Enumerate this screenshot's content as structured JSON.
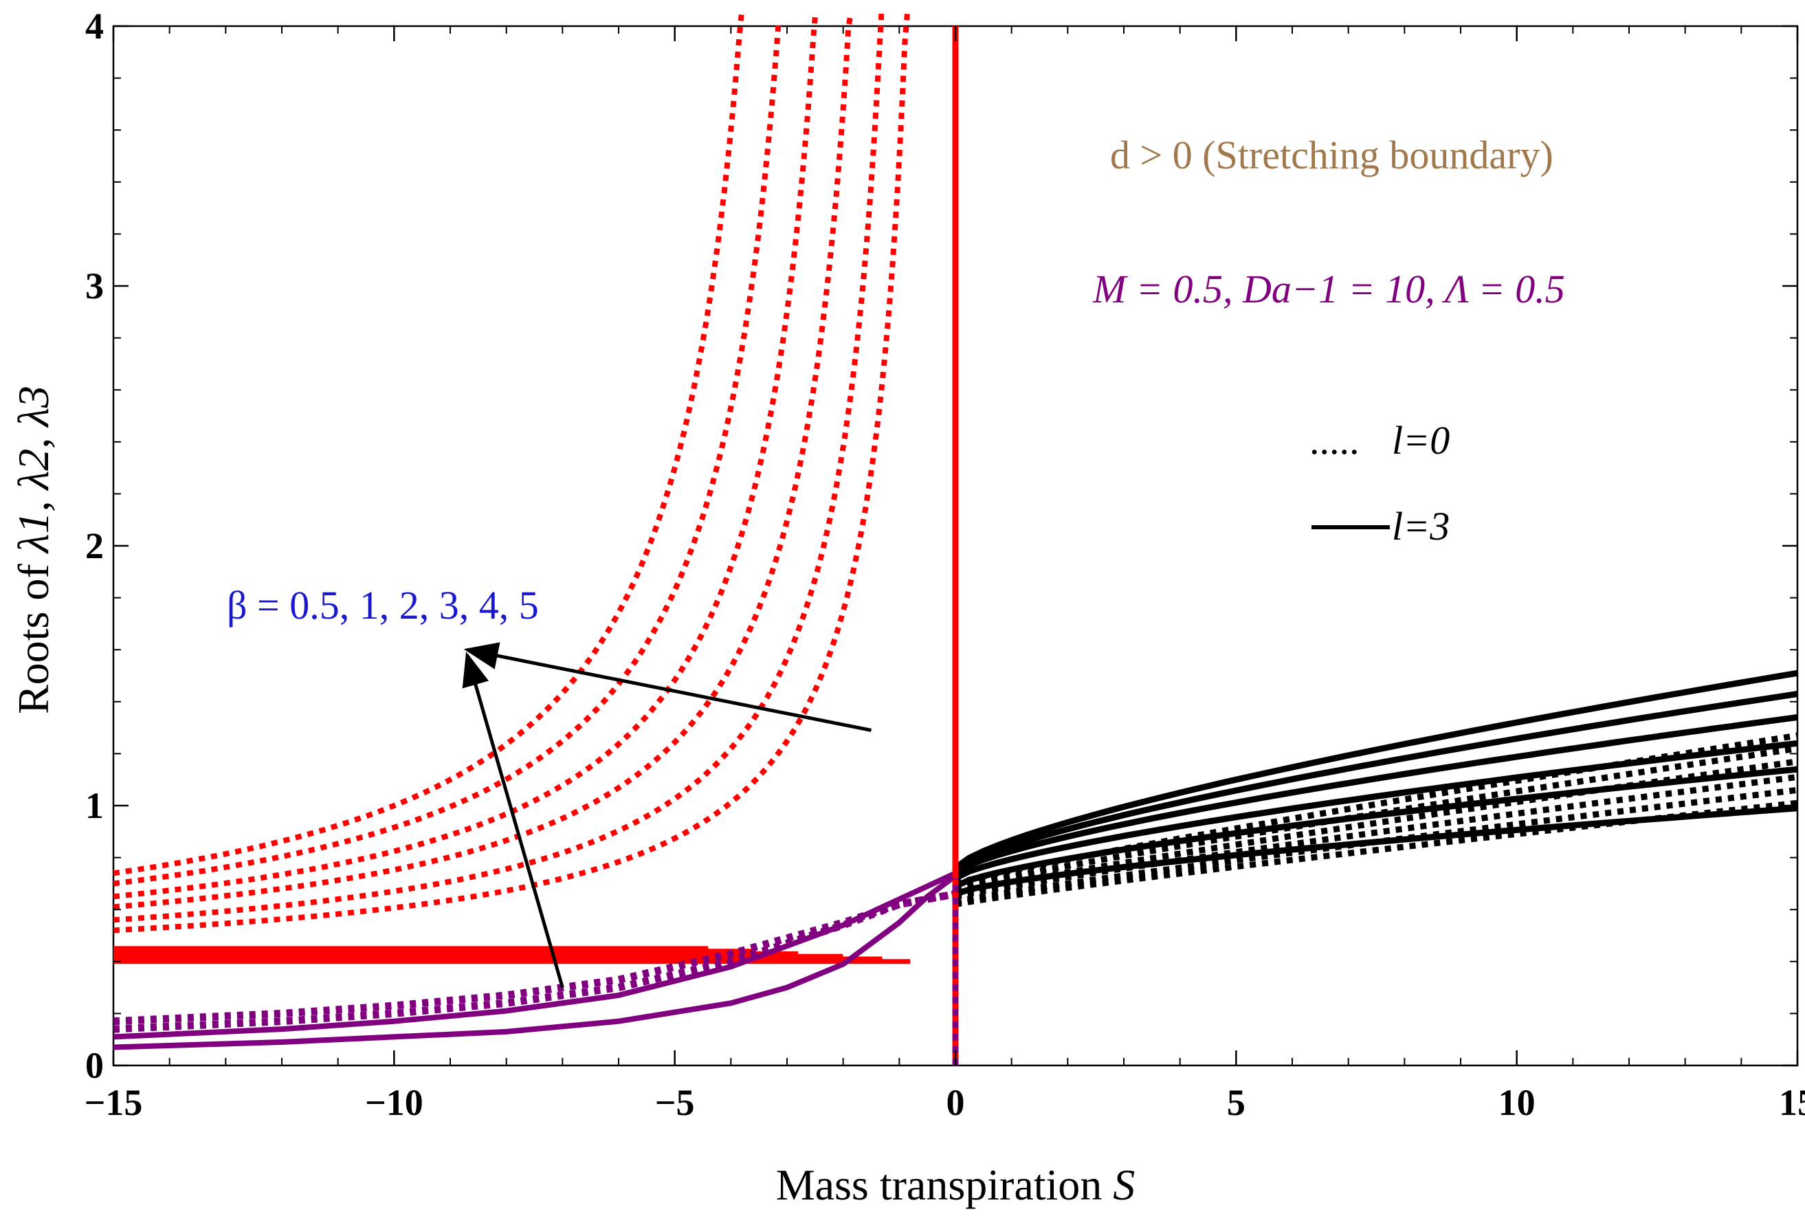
{
  "chart_data": {
    "type": "line",
    "xlabel": "Mass transpiration",
    "xlabel_var": "S",
    "ylabel_prefix": "Roots of ",
    "ylabel_math": "λ1, λ2, λ3",
    "xlim": [
      -15,
      15
    ],
    "ylim": [
      0,
      4
    ],
    "x_ticks": [
      -15,
      -10,
      -5,
      0,
      5,
      10,
      15
    ],
    "x_tick_labels": [
      "−15",
      "−10",
      "−5",
      "0",
      "5",
      "10",
      "15"
    ],
    "y_ticks": [
      0,
      1,
      2,
      3,
      4
    ],
    "y_tick_labels": [
      "0",
      "1",
      "2",
      "3",
      "4"
    ],
    "grid": false,
    "annotations": {
      "condition": "d > 0 (Stretching boundary)",
      "params": "M = 0.5, Da−1 = 10, Λ = 0.5",
      "beta": "β = 0.5, 1, 2, 3, 4, 5",
      "legend_dotted": "l=0",
      "legend_solid": "l=3",
      "legend_dotted_marker": ".....",
      "legend_solid_marker": "—"
    },
    "colors": {
      "red_branch": "#ff0000",
      "purple_branch": "#800080",
      "black_branch": "#000000",
      "condition_text": "#a0784c",
      "params_text": "#800080",
      "beta_text": "#1a1acc"
    },
    "beta": [
      0.5,
      1,
      2,
      3,
      4,
      5
    ],
    "red_branch": {
      "x_range": [
        -15,
        0
      ],
      "series": [
        {
          "beta": 0.5,
          "style": "solid",
          "asymptote": -0.8,
          "start_value": 0.4,
          "base": 0.4
        },
        {
          "beta": 1,
          "style": "solid",
          "asymptote": -1.3,
          "start_value": 0.41,
          "base": 0.41
        },
        {
          "beta": 2,
          "style": "solid",
          "asymptote": -2.0,
          "start_value": 0.42,
          "base": 0.42
        },
        {
          "beta": 3,
          "style": "solid",
          "asymptote": -2.8,
          "start_value": 0.43,
          "base": 0.43
        },
        {
          "beta": 4,
          "style": "solid",
          "asymptote": -3.6,
          "start_value": 0.44,
          "base": 0.44
        },
        {
          "beta": 5,
          "style": "solid",
          "asymptote": -4.4,
          "start_value": 0.45,
          "base": 0.45
        },
        {
          "beta": 0.5,
          "style": "dotted",
          "asymptote": -0.2,
          "start_value": 0.52
        },
        {
          "beta": 1,
          "style": "dotted",
          "asymptote": -0.5,
          "start_value": 0.56
        },
        {
          "beta": 2,
          "style": "dotted",
          "asymptote": -0.9,
          "start_value": 0.61
        },
        {
          "beta": 3,
          "style": "dotted",
          "asymptote": -1.4,
          "start_value": 0.65
        },
        {
          "beta": 4,
          "style": "dotted",
          "asymptote": -1.9,
          "start_value": 0.7
        },
        {
          "beta": 5,
          "style": "dotted",
          "asymptote": -2.5,
          "start_value": 0.74
        }
      ]
    },
    "purple_branch": {
      "x_range": [
        -15,
        0
      ],
      "series": [
        {
          "style": "solid",
          "x": [
            -15,
            -12,
            -10,
            -8,
            -6,
            -4,
            -3,
            -2,
            -1,
            -0.5,
            0
          ],
          "y": [
            0.07,
            0.09,
            0.11,
            0.13,
            0.17,
            0.24,
            0.3,
            0.39,
            0.55,
            0.65,
            0.73
          ]
        },
        {
          "style": "solid",
          "x": [
            -15,
            -12,
            -10,
            -8,
            -6,
            -4,
            -3,
            -2,
            -1,
            -0.5,
            0
          ],
          "y": [
            0.11,
            0.14,
            0.17,
            0.21,
            0.27,
            0.38,
            0.46,
            0.54,
            0.64,
            0.69,
            0.74
          ]
        },
        {
          "style": "dotted",
          "x": [
            -15,
            -12,
            -10,
            -8,
            -6,
            -4,
            -3,
            -2,
            -1,
            0
          ],
          "y": [
            0.14,
            0.17,
            0.2,
            0.24,
            0.3,
            0.4,
            0.47,
            0.54,
            0.62,
            0.66
          ]
        },
        {
          "style": "dotted",
          "x": [
            -15,
            -12,
            -10,
            -8,
            -6,
            -4,
            -3,
            -2,
            -1,
            0
          ],
          "y": [
            0.17,
            0.2,
            0.23,
            0.27,
            0.33,
            0.43,
            0.49,
            0.55,
            0.62,
            0.66
          ]
        }
      ]
    },
    "black_branch": {
      "x_range": [
        0,
        15
      ],
      "series": [
        {
          "style": "solid",
          "beta": 5,
          "y0": 0.76,
          "y15": 1.51
        },
        {
          "style": "solid",
          "beta": 4,
          "y0": 0.75,
          "y15": 1.43
        },
        {
          "style": "solid",
          "beta": 3,
          "y0": 0.74,
          "y15": 1.34
        },
        {
          "style": "solid",
          "beta": 2,
          "y0": 0.72,
          "y15": 1.24
        },
        {
          "style": "solid",
          "beta": 1,
          "y0": 0.69,
          "y15": 1.14
        },
        {
          "style": "solid",
          "beta": 0.5,
          "y0": 0.66,
          "y15": 0.99
        },
        {
          "style": "dotted",
          "beta": 5,
          "y0": 0.7,
          "y15": 1.27
        },
        {
          "style": "dotted",
          "beta": 4,
          "y0": 0.68,
          "y15": 1.22
        },
        {
          "style": "dotted",
          "beta": 3,
          "y0": 0.66,
          "y15": 1.17
        },
        {
          "style": "dotted",
          "beta": 2,
          "y0": 0.65,
          "y15": 1.11
        },
        {
          "style": "dotted",
          "beta": 1,
          "y0": 0.63,
          "y15": 1.06
        },
        {
          "style": "dotted",
          "beta": 0.5,
          "y0": 0.62,
          "y15": 1.01
        }
      ]
    },
    "vertical_line": {
      "x": 0,
      "y_top": 4,
      "y_bottom": 0
    },
    "arrows": [
      {
        "from": [
          -1.5,
          1.29
        ],
        "to": [
          -8.7,
          1.6
        ]
      },
      {
        "from": [
          -7.0,
          0.3
        ],
        "to": [
          -8.7,
          1.58
        ]
      }
    ]
  }
}
